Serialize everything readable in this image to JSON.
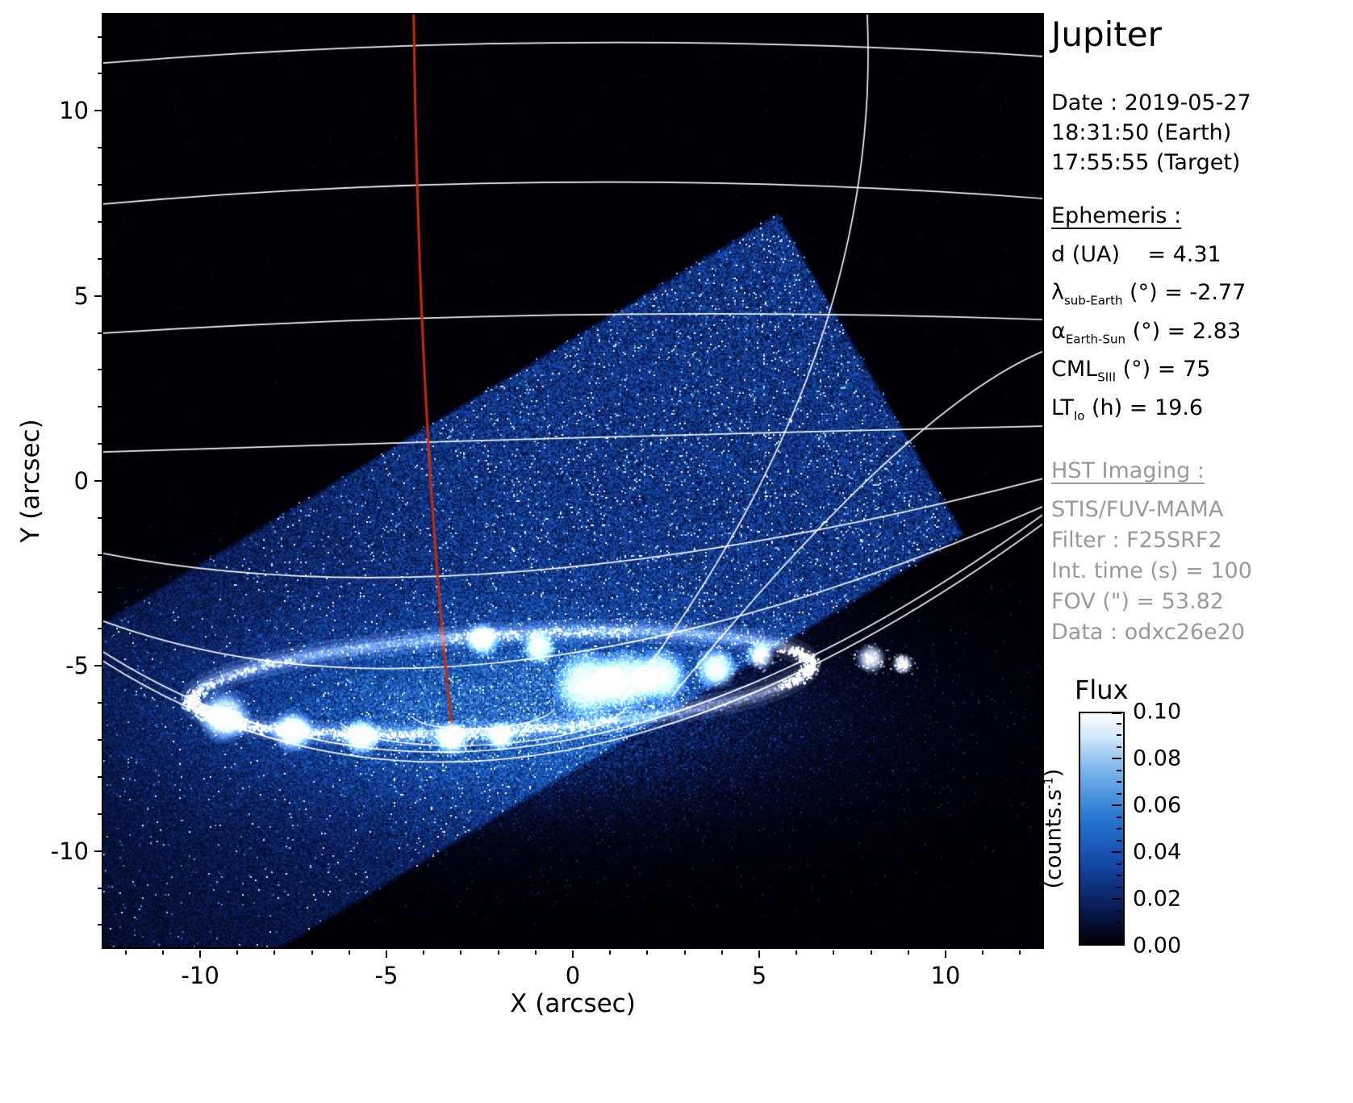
{
  "title": "Jupiter",
  "header": {
    "date": "Date : 2019-05-27",
    "time_earth": "18:31:50 (Earth)",
    "time_target": "17:55:55 (Target)"
  },
  "ephemeris": {
    "heading": "Ephemeris :",
    "lines": [
      {
        "base": "d (UA)",
        "sub": "",
        "rest": "    = 4.31"
      },
      {
        "base": "λ",
        "sub": "sub-Earth",
        "rest": " (°) = -2.77"
      },
      {
        "base": "α",
        "sub": "Earth-Sun",
        "rest": " (°) = 2.83"
      },
      {
        "base": "CML",
        "sub": "SIII",
        "rest": " (°) = 75"
      },
      {
        "base": "LT",
        "sub": "Io",
        "rest": " (h) = 19.6"
      }
    ]
  },
  "hst": {
    "heading": "HST Imaging :",
    "lines": [
      "STIS/FUV-MAMA",
      "Filter : F25SRF2",
      "Int. time (s) = 100",
      "FOV (\") = 53.82",
      "Data : odxc26e20"
    ]
  },
  "axes": {
    "xlabel": "X (arcsec)",
    "ylabel": "Y (arcsec)",
    "xticks": [
      {
        "v": -10,
        "label": "-10"
      },
      {
        "v": -5,
        "label": "-5"
      },
      {
        "v": 0,
        "label": "0"
      },
      {
        "v": 5,
        "label": "5"
      },
      {
        "v": 10,
        "label": "10"
      }
    ],
    "yticks": [
      {
        "v": 10,
        "label": "10"
      },
      {
        "v": 5,
        "label": "5"
      },
      {
        "v": 0,
        "label": "0"
      },
      {
        "v": -5,
        "label": "-5"
      },
      {
        "v": -10,
        "label": "-10"
      }
    ]
  },
  "colorbar": {
    "title": "Flux",
    "units_pre": "(counts.s",
    "units_sup": "-1",
    "units_post": ")",
    "ticks": [
      {
        "v": 0.0,
        "label": "0.00"
      },
      {
        "v": 0.02,
        "label": "0.02"
      },
      {
        "v": 0.04,
        "label": "0.04"
      },
      {
        "v": 0.06,
        "label": "0.06"
      },
      {
        "v": 0.08,
        "label": "0.08"
      },
      {
        "v": 0.1,
        "label": "0.10"
      }
    ]
  },
  "chart_data": {
    "type": "heatmap",
    "title": "Jupiter",
    "xlabel": "X (arcsec)",
    "ylabel": "Y (arcsec)",
    "xlim": [
      -12.6,
      12.6
    ],
    "ylim": [
      -12.6,
      12.6
    ],
    "xticks": [
      -10,
      -5,
      0,
      5,
      10
    ],
    "yticks": [
      -10,
      -5,
      0,
      5,
      10
    ],
    "background": "#000000",
    "grid": false,
    "colorbar": {
      "title": "Flux",
      "units": "(counts.s-1)",
      "range": [
        0.0,
        0.1
      ],
      "ticks": [
        0.0,
        0.02,
        0.04,
        0.06,
        0.08,
        0.1
      ],
      "colormap": [
        {
          "v": 0.0,
          "c": "#000006"
        },
        {
          "v": 0.15,
          "c": "#0a1a52"
        },
        {
          "v": 0.35,
          "c": "#1448a8"
        },
        {
          "v": 0.55,
          "c": "#2878d2"
        },
        {
          "v": 0.75,
          "c": "#78b4ea"
        },
        {
          "v": 0.9,
          "c": "#d2e8fa"
        },
        {
          "v": 1.0,
          "c": "#ffffff"
        }
      ]
    },
    "features": {
      "detector_fov": {
        "description": "Tilted STIS/FUV-MAMA detector field of view filled with blue photon-count noise",
        "corners_arcsec": [
          [
            5.5,
            7.3
          ],
          [
            10.7,
            -1.35
          ],
          [
            -15.5,
            -16.65
          ],
          [
            -20.7,
            -8.0
          ]
        ]
      },
      "aurora": {
        "description": "Jupiter FUV auroral oval, saturated white emission near the pole",
        "center_arcsec": [
          -1.95,
          -5.45
        ],
        "rx_arcsec": 8.3,
        "ry_arcsec": 1.3,
        "rotation_rad": -0.06,
        "glow_center": [
          -2.2,
          -6.26
        ],
        "glow_sigma": [
          7.1,
          2.1
        ],
        "blobs": [
          {
            "x": 0.4,
            "y": -5.5,
            "r": 1.0
          },
          {
            "x": 1.4,
            "y": -5.4,
            "r": 0.9
          },
          {
            "x": 2.34,
            "y": -5.28,
            "r": 0.8
          },
          {
            "x": 3.85,
            "y": -5.06,
            "r": 0.6
          },
          {
            "x": 5.04,
            "y": -4.73,
            "r": 0.4
          },
          {
            "x": -9.35,
            "y": -6.37,
            "r": 0.75
          },
          {
            "x": -7.51,
            "y": -6.76,
            "r": 0.62
          },
          {
            "x": -5.67,
            "y": -6.91,
            "r": 0.55
          },
          {
            "x": -3.25,
            "y": -6.96,
            "r": 0.5
          },
          {
            "x": -1.95,
            "y": -6.9,
            "r": 0.42
          },
          {
            "x": -2.43,
            "y": -4.29,
            "r": 0.5
          },
          {
            "x": -0.91,
            "y": -4.51,
            "r": 0.48
          },
          {
            "x": 8.0,
            "y": -4.8,
            "r": 0.42
          },
          {
            "x": 8.85,
            "y": -4.95,
            "r": 0.3
          }
        ]
      },
      "graticule": {
        "color": "#ffffff",
        "latitudes": [
          [
            [
              -12.6,
              11.29
            ],
            [
              -0.04,
              11.84
            ],
            [
              12.6,
              11.47
            ]
          ],
          [
            [
              -12.6,
              7.48
            ],
            [
              -0.04,
              8.07
            ],
            [
              12.6,
              7.63
            ]
          ],
          [
            [
              -12.6,
              3.99
            ],
            [
              -0.04,
              4.49
            ],
            [
              12.6,
              4.36
            ]
          ],
          [
            [
              -12.6,
              0.78
            ],
            [
              -0.04,
              1.16
            ],
            [
              12.6,
              1.48
            ]
          ],
          [
            [
              -12.6,
              -1.96
            ],
            [
              -1.34,
              -2.44
            ],
            [
              12.6,
              0.06
            ]
          ],
          [
            [
              -12.6,
              -3.79
            ],
            [
              -1.34,
              -4.84
            ],
            [
              12.6,
              -0.7
            ]
          ]
        ],
        "limb": [
          [
            [
              -12.6,
              -4.62
            ],
            [
              -0.91,
              -7.13
            ],
            [
              12.6,
              -0.92
            ]
          ],
          [
            [
              -12.6,
              -4.87
            ],
            [
              -0.91,
              -7.4
            ],
            [
              12.6,
              -1.17
            ]
          ]
        ],
        "meridians": [
          [
            [
              7.9,
              12.6
            ],
            [
              6.45,
              3.22
            ],
            [
              1.26,
              -6.04
            ]
          ],
          [
            [
              12.6,
              3.49
            ],
            [
              8.29,
              0.39
            ],
            [
              2.66,
              -5.82
            ]
          ]
        ],
        "polar_arcs": {
          "center": [
            -2.42,
            -6.15
          ],
          "rx": [
            1.95,
            3.9
          ],
          "ry": [
            0.55,
            0.98
          ]
        }
      },
      "cml_meridian": {
        "description": "Sub-Earth central meridian (CML) drawn in red",
        "color": "#cc2a00",
        "path": [
          [
            -4.27,
            12.6
          ],
          [
            -3.94,
            2.14
          ],
          [
            -3.25,
            -6.58
          ]
        ]
      }
    }
  }
}
